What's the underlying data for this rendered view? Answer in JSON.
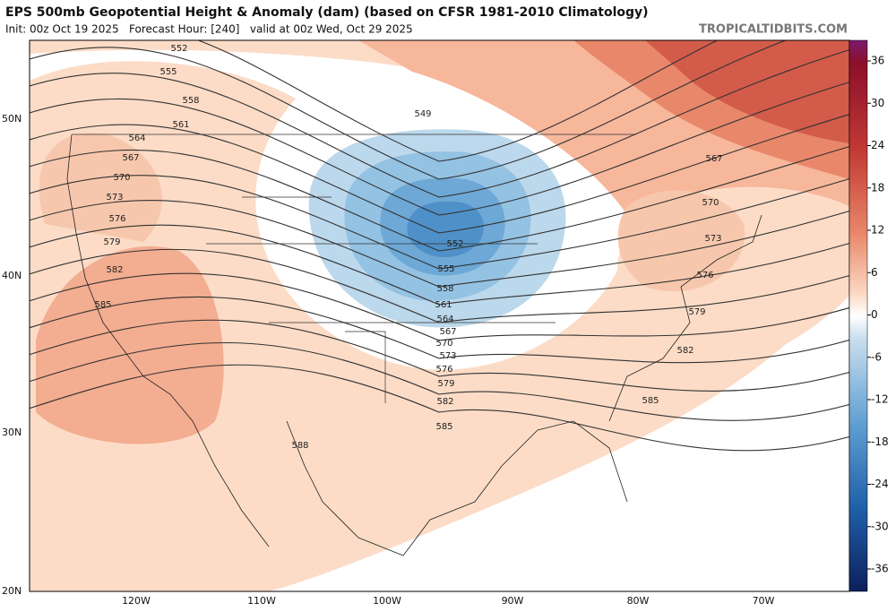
{
  "header": {
    "title": "EPS 500mb Geopotential Height & Anomaly (dam) (based on CFSR 1981-2010 Climatology)",
    "subtitle": "Init: 00z Oct 19 2025   Forecast Hour: [240]   valid at 00z Wed, Oct 29 2025",
    "site": "TROPICALTIDBITS.COM"
  },
  "map": {
    "lon_labels": [
      "120W",
      "110W",
      "100W",
      "90W",
      "80W",
      "70W"
    ],
    "lat_labels": [
      "50N",
      "40N",
      "30N",
      "20N"
    ],
    "contour_labels": [
      552,
      555,
      558,
      561,
      564,
      567,
      570,
      573,
      576,
      579,
      582,
      585,
      588,
      549,
      552,
      555,
      558,
      561,
      564,
      567,
      570,
      573,
      576,
      579,
      582,
      585,
      567,
      570,
      573,
      576,
      579,
      582,
      585
    ]
  },
  "colorbar": {
    "ticks": [
      36,
      30,
      24,
      18,
      12,
      6,
      0,
      -6,
      -12,
      -18,
      -24,
      -30,
      -36
    ]
  }
}
